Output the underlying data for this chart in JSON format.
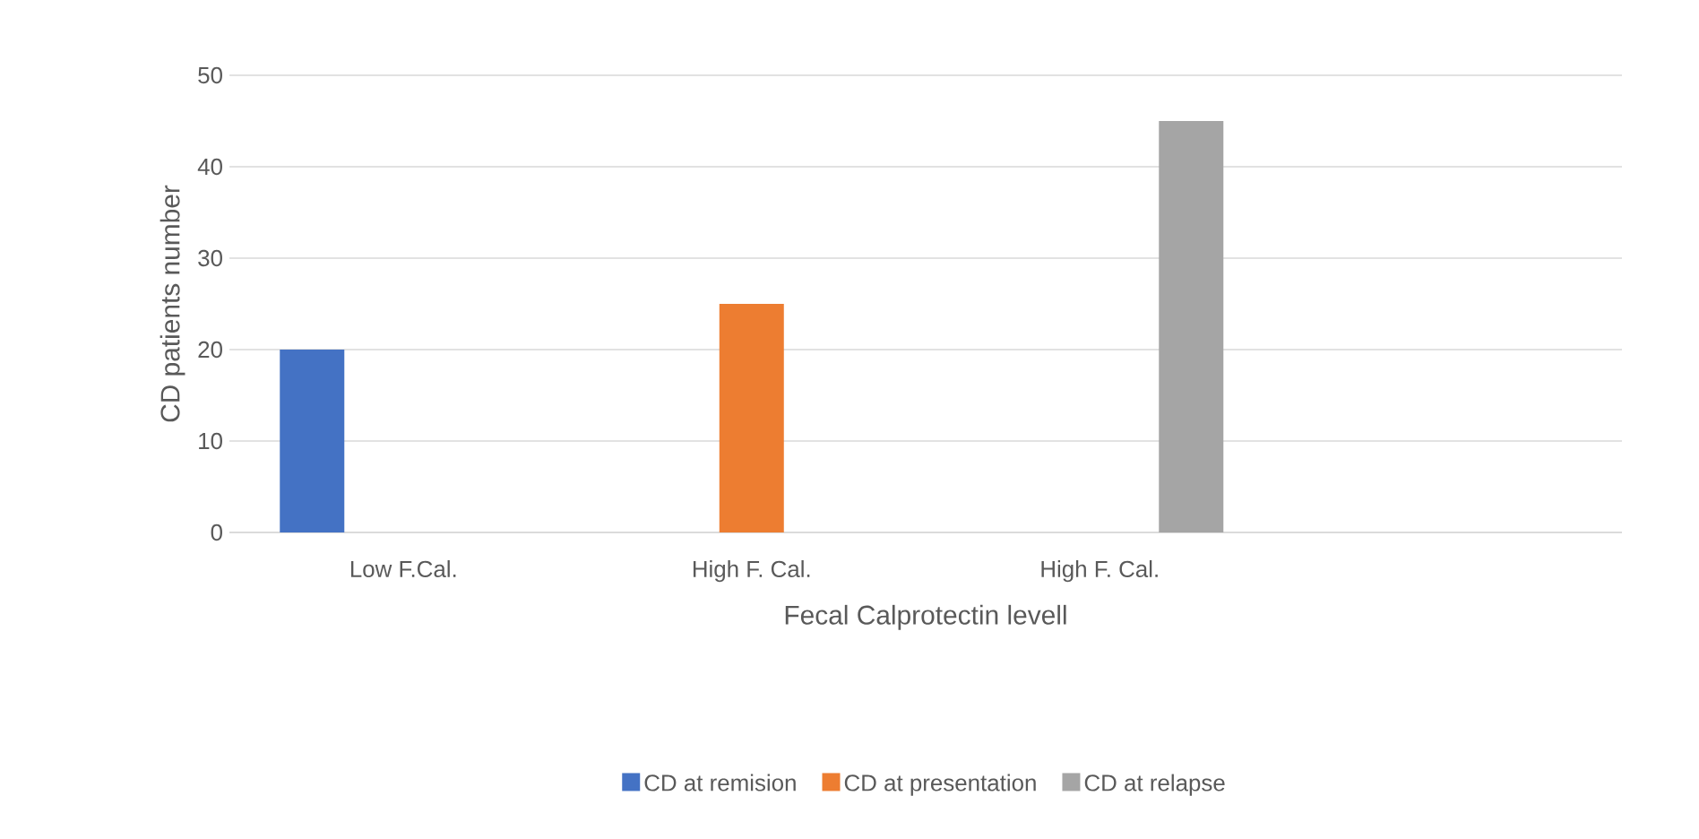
{
  "chart_data": {
    "type": "bar",
    "xlabel": "Fecal Calprotectin levell",
    "ylabel": "CD patients number",
    "categories": [
      "Low F.Cal.",
      "High F. Cal.",
      "High F. Cal.",
      null
    ],
    "series": [
      {
        "name": "CD at remision",
        "color": "#4472c4",
        "values": [
          20,
          null,
          null,
          null
        ]
      },
      {
        "name": "CD at presentation",
        "color": "#ed7d31",
        "values": [
          null,
          25,
          null,
          null
        ]
      },
      {
        "name": "CD at relapse",
        "color": "#a5a5a5",
        "values": [
          null,
          null,
          45,
          null
        ]
      }
    ],
    "ylim": [
      0,
      50
    ],
    "yticks": [
      0,
      10,
      20,
      30,
      40,
      50
    ],
    "grid": "y",
    "legend": "bottom"
  }
}
